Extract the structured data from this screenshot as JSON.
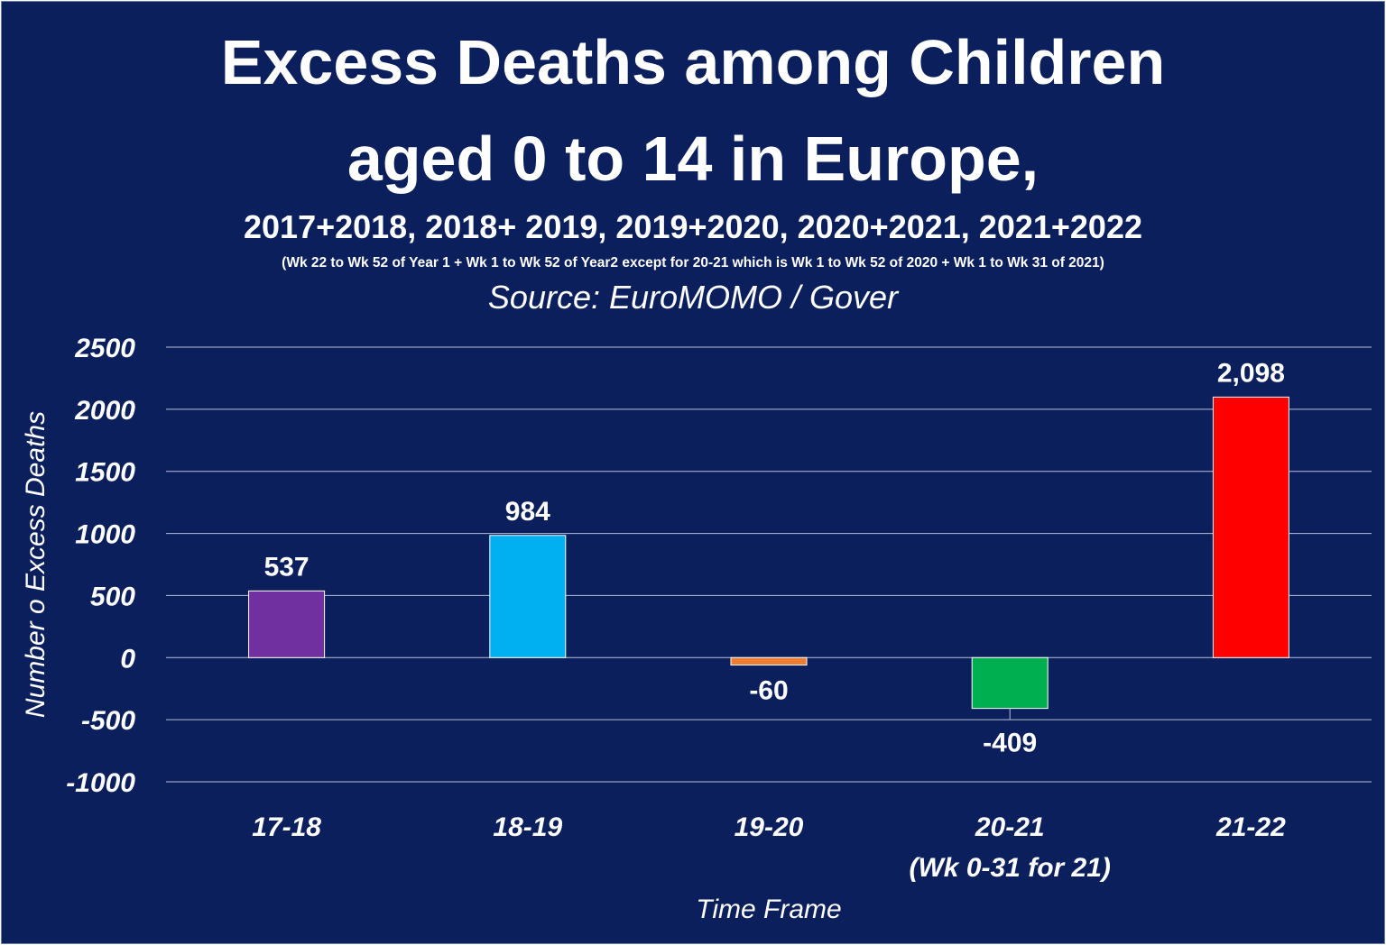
{
  "background_color": "#0b1f5c",
  "header": {
    "title_line1": "Excess Deaths among Children",
    "title_line2": "aged 0 to 14 in Europe,",
    "subtitle": "2017+2018, 2018+ 2019, 2019+2020, 2020+2021, 2021+2022",
    "note": "(Wk 22 to Wk 52 of Year 1 + Wk 1 to Wk 52 of Year2 except for 20-21 which is Wk 1 to Wk 52 of 2020 + Wk 1 to Wk 31 of 2021)",
    "source": "Source: EuroMOMO / Gover"
  },
  "chart_data": {
    "type": "bar",
    "title": "Excess Deaths among Children aged 0 to 14 in Europe,",
    "xlabel": "Time Frame",
    "ylabel": "Number o Excess Deaths",
    "ylim": [
      -1000,
      2500
    ],
    "yticks": [
      2500,
      2000,
      1500,
      1000,
      500,
      0,
      -500,
      -1000
    ],
    "grid": true,
    "legend": "none",
    "categories": [
      "17-18",
      "18-19",
      "19-20",
      "20-21",
      "21-22"
    ],
    "category_sublabels": [
      "",
      "",
      "",
      "(Wk 0-31 for 21)",
      ""
    ],
    "values": [
      537,
      984,
      -60,
      -409,
      2098
    ],
    "value_labels": [
      "537",
      "984",
      "-60",
      "-409",
      "2,098"
    ],
    "colors": [
      "#7030a0",
      "#00b0f0",
      "#ed7d31",
      "#00b050",
      "#ff0000"
    ]
  }
}
